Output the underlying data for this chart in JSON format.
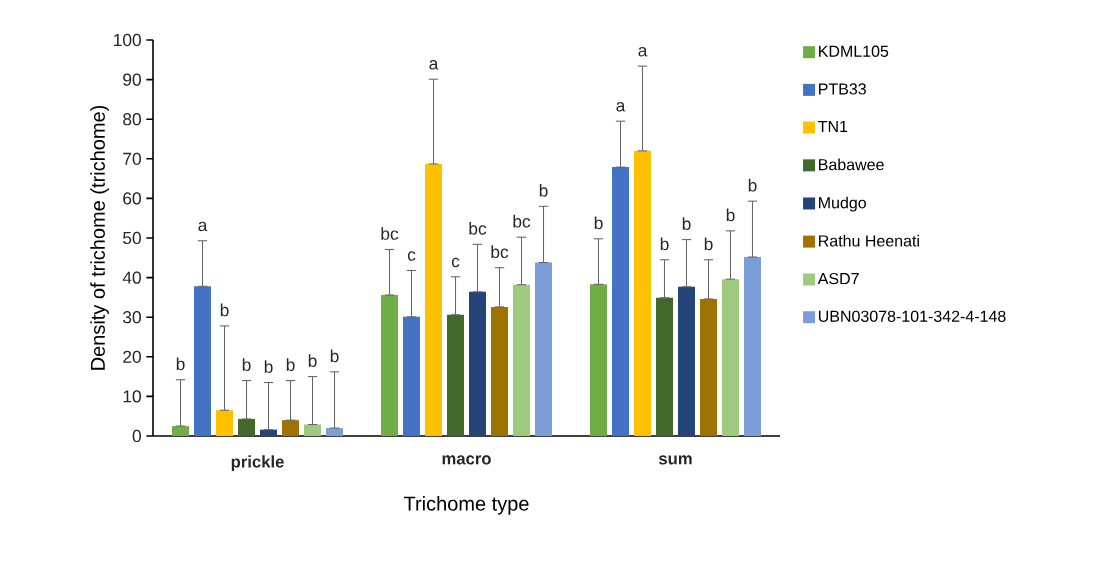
{
  "chart_data": {
    "type": "bar",
    "xlabel": "Trichome type",
    "ylabel": "Density of trichome (trichome)",
    "categories": [
      "prickle",
      "macro",
      "sum"
    ],
    "annotations": [
      "b",
      "bc",
      "b",
      "a",
      "c",
      "a",
      "b",
      "a",
      "a",
      "b",
      "c",
      "b",
      "b",
      "bc",
      "b",
      "b",
      "bc",
      "b",
      "b",
      "bc",
      "b",
      "b",
      "b",
      "b"
    ],
    "ylim": [
      0,
      100
    ],
    "yticks": [
      0,
      10,
      20,
      30,
      40,
      50,
      60,
      70,
      80,
      90,
      100
    ],
    "legend": "right",
    "series": [
      {
        "name": "KDML105",
        "color": "#70ad47",
        "values": [
          2.5,
          35.6,
          38.3
        ],
        "errors": [
          [
            2.5,
            14.2
          ],
          [
            35.6,
            47.1
          ],
          [
            38.3,
            49.8
          ]
        ]
      },
      {
        "name": "PTB33",
        "color": "#4472c4",
        "values": [
          37.8,
          30.1,
          67.9
        ],
        "errors": [
          [
            37.8,
            49.3
          ],
          [
            30.1,
            41.8
          ],
          [
            67.9,
            79.5
          ]
        ]
      },
      {
        "name": "TN1",
        "color": "#ffc000",
        "values": [
          6.5,
          68.7,
          72.0
        ],
        "errors": [
          [
            6.5,
            27.8
          ],
          [
            68.7,
            90.1
          ],
          [
            72.0,
            93.4
          ]
        ]
      },
      {
        "name": "Babawee",
        "color": "#43682b",
        "values": [
          4.3,
          30.6,
          34.9
        ],
        "errors": [
          [
            4.3,
            14.0
          ],
          [
            30.6,
            40.2
          ],
          [
            34.9,
            44.5
          ]
        ]
      },
      {
        "name": "Mudgo",
        "color": "#264478",
        "values": [
          1.6,
          36.4,
          37.7
        ],
        "errors": [
          [
            1.6,
            13.5
          ],
          [
            36.4,
            48.4
          ],
          [
            37.7,
            49.6
          ]
        ]
      },
      {
        "name": "Rathu Heenati",
        "color": "#9e7300",
        "values": [
          4.0,
          32.6,
          34.6
        ],
        "errors": [
          [
            4.0,
            14.0
          ],
          [
            32.6,
            42.5
          ],
          [
            34.6,
            44.5
          ]
        ]
      },
      {
        "name": "ASD7",
        "color": "#9dcb7e",
        "values": [
          2.9,
          38.2,
          39.6
        ],
        "errors": [
          [
            2.9,
            15.0
          ],
          [
            38.2,
            50.2
          ],
          [
            39.6,
            51.8
          ]
        ]
      },
      {
        "name": "UBN03078-101-342-4-148",
        "color": "#7b9dd8",
        "values": [
          2.0,
          43.8,
          45.2
        ],
        "errors": [
          [
            2.0,
            16.2
          ],
          [
            43.8,
            58.0
          ],
          [
            45.2,
            59.3
          ]
        ]
      }
    ]
  }
}
